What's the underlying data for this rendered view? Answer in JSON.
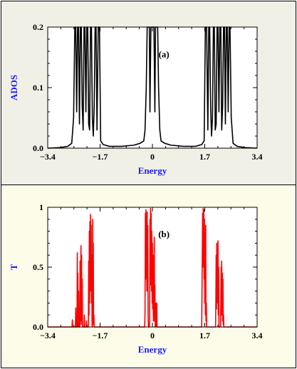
{
  "chart_data": [
    {
      "type": "line",
      "panel_label": "(a)",
      "xlabel": "Energy",
      "ylabel": "ADOS",
      "xlim": [
        -3.4,
        3.4
      ],
      "ylim": [
        0,
        0.2
      ],
      "x_ticks": [
        "-3.4",
        "-1.7",
        "0",
        "1.7",
        "3.4"
      ],
      "x_tick_values": [
        -3.4,
        -1.7,
        0,
        1.7,
        3.4
      ],
      "y_ticks": [
        "0.0",
        "0.1",
        "0.2"
      ],
      "y_tick_values": [
        0,
        0.1,
        0.2
      ],
      "line_color": "#000000",
      "background": "#f1f0e6",
      "grid": false,
      "series": [
        {
          "values": [
            [
              -3.4,
              0.0
            ],
            [
              -3.0,
              0.001
            ],
            [
              -2.75,
              0.003
            ],
            [
              -2.62,
              0.008
            ],
            [
              -2.56,
              0.05
            ],
            [
              -2.52,
              0.2
            ],
            [
              -2.49,
              0.2
            ],
            [
              -2.46,
              0.06
            ],
            [
              -2.43,
              0.2
            ],
            [
              -2.4,
              0.2
            ],
            [
              -2.37,
              0.04
            ],
            [
              -2.34,
              0.2
            ],
            [
              -2.31,
              0.2
            ],
            [
              -2.28,
              0.07
            ],
            [
              -2.25,
              0.03
            ],
            [
              -2.22,
              0.2
            ],
            [
              -2.19,
              0.2
            ],
            [
              -2.16,
              0.06
            ],
            [
              -2.13,
              0.2
            ],
            [
              -2.1,
              0.2
            ],
            [
              -2.07,
              0.04
            ],
            [
              -2.04,
              0.03
            ],
            [
              -2.01,
              0.2
            ],
            [
              -1.98,
              0.2
            ],
            [
              -1.95,
              0.05
            ],
            [
              -1.92,
              0.02
            ],
            [
              -1.89,
              0.07
            ],
            [
              -1.86,
              0.2
            ],
            [
              -1.83,
              0.2
            ],
            [
              -1.8,
              0.03
            ],
            [
              -1.76,
              0.2
            ],
            [
              -1.72,
              0.2
            ],
            [
              -1.68,
              0.012
            ],
            [
              -1.6,
              0.006
            ],
            [
              -1.4,
              0.003
            ],
            [
              -1.0,
              0.003
            ],
            [
              -0.6,
              0.005
            ],
            [
              -0.4,
              0.008
            ],
            [
              -0.28,
              0.012
            ],
            [
              -0.24,
              0.03
            ],
            [
              -0.2,
              0.1
            ],
            [
              -0.17,
              0.2
            ],
            [
              -0.13,
              0.2
            ],
            [
              -0.1,
              0.2
            ],
            [
              -0.08,
              0.06
            ],
            [
              -0.05,
              0.2
            ],
            [
              0.0,
              0.2
            ],
            [
              0.05,
              0.2
            ],
            [
              0.08,
              0.06
            ],
            [
              0.1,
              0.2
            ],
            [
              0.13,
              0.2
            ],
            [
              0.17,
              0.2
            ],
            [
              0.2,
              0.1
            ],
            [
              0.24,
              0.03
            ],
            [
              0.28,
              0.012
            ],
            [
              0.4,
              0.008
            ],
            [
              0.6,
              0.005
            ],
            [
              1.0,
              0.003
            ],
            [
              1.4,
              0.003
            ],
            [
              1.6,
              0.006
            ],
            [
              1.68,
              0.012
            ],
            [
              1.72,
              0.2
            ],
            [
              1.76,
              0.2
            ],
            [
              1.8,
              0.03
            ],
            [
              1.83,
              0.2
            ],
            [
              1.86,
              0.2
            ],
            [
              1.89,
              0.07
            ],
            [
              1.92,
              0.02
            ],
            [
              1.95,
              0.05
            ],
            [
              1.98,
              0.2
            ],
            [
              2.01,
              0.2
            ],
            [
              2.04,
              0.03
            ],
            [
              2.07,
              0.04
            ],
            [
              2.1,
              0.2
            ],
            [
              2.13,
              0.2
            ],
            [
              2.16,
              0.06
            ],
            [
              2.19,
              0.2
            ],
            [
              2.22,
              0.2
            ],
            [
              2.25,
              0.03
            ],
            [
              2.28,
              0.07
            ],
            [
              2.31,
              0.2
            ],
            [
              2.34,
              0.2
            ],
            [
              2.37,
              0.04
            ],
            [
              2.4,
              0.2
            ],
            [
              2.43,
              0.2
            ],
            [
              2.46,
              0.06
            ],
            [
              2.49,
              0.2
            ],
            [
              2.52,
              0.2
            ],
            [
              2.56,
              0.05
            ],
            [
              2.62,
              0.008
            ],
            [
              2.75,
              0.003
            ],
            [
              3.0,
              0.001
            ],
            [
              3.4,
              0.0
            ]
          ]
        }
      ]
    },
    {
      "type": "line",
      "panel_label": "(b)",
      "xlabel": "Energy",
      "ylabel": "T",
      "xlim": [
        -3.4,
        3.4
      ],
      "ylim": [
        0,
        1
      ],
      "x_ticks": [
        "-3.4",
        "-1.7",
        "0",
        "1.7",
        "3.4"
      ],
      "x_tick_values": [
        -3.4,
        -1.7,
        0,
        1.7,
        3.4
      ],
      "y_ticks": [
        "0.0",
        "0.5",
        "1"
      ],
      "y_tick_values": [
        0,
        0.5,
        1
      ],
      "line_color": "#ff0000",
      "background": "#fdfce9",
      "grid": false,
      "series": [
        {
          "values": [
            [
              -3.4,
              0
            ],
            [
              -2.61,
              0
            ],
            [
              -2.6,
              0.06
            ],
            [
              -2.59,
              0
            ],
            [
              -2.5,
              0
            ],
            [
              -2.49,
              0.16
            ],
            [
              -2.48,
              0
            ],
            [
              -2.45,
              0
            ],
            [
              -2.44,
              0.62
            ],
            [
              -2.43,
              0
            ],
            [
              -2.42,
              0.45
            ],
            [
              -2.41,
              0
            ],
            [
              -2.4,
              0.3
            ],
            [
              -2.39,
              0
            ],
            [
              -2.36,
              0
            ],
            [
              -2.35,
              0.55
            ],
            [
              -2.34,
              0.02
            ],
            [
              -2.32,
              0.68
            ],
            [
              -2.31,
              0.05
            ],
            [
              -2.3,
              0.6
            ],
            [
              -2.29,
              0.02
            ],
            [
              -2.28,
              0.4
            ],
            [
              -2.27,
              0
            ],
            [
              -2.22,
              0
            ],
            [
              -2.21,
              0.1
            ],
            [
              -2.2,
              0
            ],
            [
              -2.15,
              0
            ],
            [
              -2.14,
              0.05
            ],
            [
              -2.13,
              0
            ],
            [
              -2.08,
              0
            ],
            [
              -2.07,
              0.55
            ],
            [
              -2.06,
              0.1
            ],
            [
              -2.05,
              0.8
            ],
            [
              -2.04,
              0.2
            ],
            [
              -2.03,
              0.88
            ],
            [
              -2.02,
              0.35
            ],
            [
              -2.01,
              0.94
            ],
            [
              -2.0,
              0.3
            ],
            [
              -1.99,
              0.85
            ],
            [
              -1.98,
              0.2
            ],
            [
              -1.97,
              0.6
            ],
            [
              -1.96,
              0.02
            ],
            [
              -1.95,
              0
            ],
            [
              -1.94,
              0.9
            ],
            [
              -1.93,
              0.1
            ],
            [
              -1.92,
              0.7
            ],
            [
              -1.91,
              0.02
            ],
            [
              -1.9,
              0.1
            ],
            [
              -1.89,
              0
            ],
            [
              -0.25,
              0
            ],
            [
              -0.24,
              0.12
            ],
            [
              -0.23,
              0.95
            ],
            [
              -0.22,
              0.4
            ],
            [
              -0.21,
              0.98
            ],
            [
              -0.2,
              0.6
            ],
            [
              -0.19,
              0.9
            ],
            [
              -0.18,
              0.3
            ],
            [
              -0.17,
              0.96
            ],
            [
              -0.16,
              0.5
            ],
            [
              -0.15,
              0.85
            ],
            [
              -0.14,
              0.1
            ],
            [
              -0.13,
              0
            ],
            [
              -0.1,
              0
            ],
            [
              -0.09,
              0.05
            ],
            [
              -0.08,
              0.9
            ],
            [
              -0.07,
              0.35
            ],
            [
              -0.06,
              0.99
            ],
            [
              -0.05,
              0.6
            ],
            [
              -0.04,
              0.95
            ],
            [
              -0.03,
              0.3
            ],
            [
              -0.02,
              0.8
            ],
            [
              -0.01,
              0.2
            ],
            [
              0.0,
              0.7
            ],
            [
              0.01,
              0.15
            ],
            [
              0.02,
              0.6
            ],
            [
              0.03,
              0.05
            ],
            [
              0.04,
              0.5
            ],
            [
              0.05,
              0.1
            ],
            [
              0.06,
              0.75
            ],
            [
              0.07,
              0.05
            ],
            [
              0.08,
              0.35
            ],
            [
              0.09,
              0
            ],
            [
              0.11,
              0
            ],
            [
              0.12,
              0.2
            ],
            [
              0.13,
              0.05
            ],
            [
              0.14,
              0.2
            ],
            [
              0.15,
              0
            ],
            [
              1.6,
              0
            ],
            [
              1.61,
              0.3
            ],
            [
              1.62,
              0.6
            ],
            [
              1.63,
              0.95
            ],
            [
              1.64,
              0.5
            ],
            [
              1.65,
              0.99
            ],
            [
              1.66,
              0.6
            ],
            [
              1.67,
              0.98
            ],
            [
              1.68,
              0.4
            ],
            [
              1.69,
              0.9
            ],
            [
              1.7,
              0.2
            ],
            [
              1.71,
              0.7
            ],
            [
              1.72,
              0.1
            ],
            [
              1.73,
              0.85
            ],
            [
              1.74,
              0.05
            ],
            [
              1.75,
              0.2
            ],
            [
              1.76,
              0
            ],
            [
              2.05,
              0
            ],
            [
              2.06,
              0.2
            ],
            [
              2.07,
              0.6
            ],
            [
              2.08,
              0.15
            ],
            [
              2.09,
              0.7
            ],
            [
              2.1,
              0.2
            ],
            [
              2.11,
              0.65
            ],
            [
              2.12,
              0.3
            ],
            [
              2.13,
              0.72
            ],
            [
              2.14,
              0.1
            ],
            [
              2.15,
              0.5
            ],
            [
              2.16,
              0
            ],
            [
              2.21,
              0
            ],
            [
              2.22,
              0.2
            ],
            [
              2.23,
              0.5
            ],
            [
              2.24,
              0.1
            ],
            [
              2.25,
              0.55
            ],
            [
              2.26,
              0.1
            ],
            [
              2.27,
              0.45
            ],
            [
              2.28,
              0.05
            ],
            [
              2.29,
              0.4
            ],
            [
              2.3,
              0.02
            ],
            [
              2.31,
              0.1
            ],
            [
              2.32,
              0
            ],
            [
              3.4,
              0
            ]
          ]
        }
      ]
    }
  ]
}
